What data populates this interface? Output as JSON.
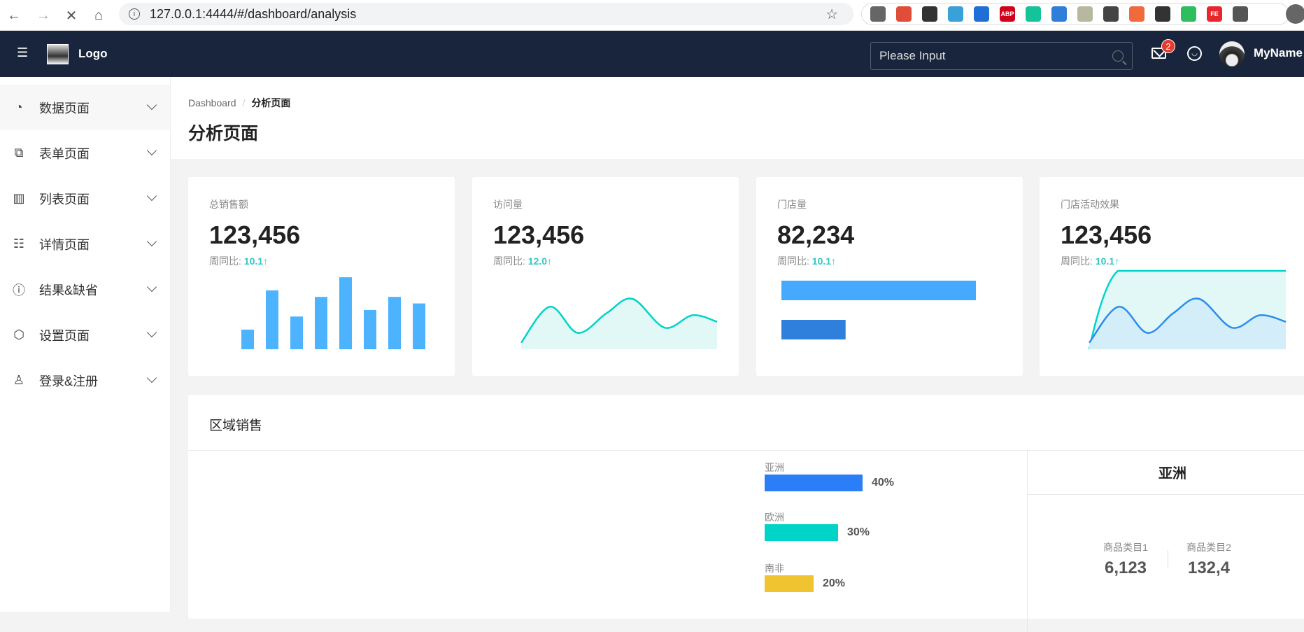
{
  "browser": {
    "url": "127.0.0.1:4444/#/dashboard/analysis",
    "nav_icons": [
      "back-arrow-icon",
      "forward-arrow-icon",
      "stop-loading-icon",
      "home-icon"
    ],
    "extensions": [
      {
        "name": "pocket-icon",
        "color": "#666666",
        "text": ""
      },
      {
        "name": "react-devtools-icon",
        "color": "#e04e39",
        "text": ""
      },
      {
        "name": "download-icon",
        "color": "#333333",
        "text": ""
      },
      {
        "name": "colorful-bowl-icon",
        "color": "#3aa0d8",
        "text": ""
      },
      {
        "name": "vue-devtools-icon",
        "color": "#1f6fd6",
        "text": ""
      },
      {
        "name": "adblock-plus-icon",
        "color": "#d0021b",
        "text": "ABP"
      },
      {
        "name": "grammarly-icon",
        "color": "#15c39a",
        "text": ""
      },
      {
        "name": "upload-arrow-icon",
        "color": "#2f7ed8",
        "text": ""
      },
      {
        "name": "image-download-icon",
        "color": "#b8b8a0",
        "text": ""
      },
      {
        "name": "edit-pen-icon",
        "color": "#444444",
        "text": ""
      },
      {
        "name": "sitemap-icon",
        "color": "#f06a3b",
        "text": ""
      },
      {
        "name": "dark-reader-icon",
        "color": "#333333",
        "text": ""
      },
      {
        "name": "evernote-icon",
        "color": "#2dbe60",
        "text": ""
      },
      {
        "name": "fe-helper-icon",
        "color": "#e8262b",
        "text": "FE"
      },
      {
        "name": "puzzle-extensions-icon",
        "color": "#555555",
        "text": ""
      }
    ]
  },
  "header": {
    "logo_text": "Logo",
    "search_placeholder": "Please Input",
    "mail_badge": "2",
    "username": "MyName"
  },
  "sidebar": {
    "items": [
      {
        "label": "数据页面",
        "icon": "pie-chart-icon",
        "glyph": "◔",
        "active": true
      },
      {
        "label": "表单页面",
        "icon": "form-icon",
        "glyph": "⧉"
      },
      {
        "label": "列表页面",
        "icon": "bar-chart-icon",
        "glyph": "▥"
      },
      {
        "label": "详情页面",
        "icon": "calendar-detail-icon",
        "glyph": "☷"
      },
      {
        "label": "结果&缺省",
        "icon": "exclamation-circle-icon",
        "glyph": "ⓘ"
      },
      {
        "label": "设置页面",
        "icon": "settings-hexagon-icon",
        "glyph": "⬡"
      },
      {
        "label": "登录&注册",
        "icon": "user-icon",
        "glyph": "♙"
      }
    ]
  },
  "page": {
    "breadcrumb": [
      "Dashboard",
      "分析页面"
    ],
    "title": "分析页面"
  },
  "cards": [
    {
      "title": "总销售额",
      "value": "123,456",
      "compare_label": "周同比:",
      "compare_value": "10.1↑"
    },
    {
      "title": "访问量",
      "value": "123,456",
      "compare_label": "周同比:",
      "compare_value": "12.0↑"
    },
    {
      "title": "门店量",
      "value": "82,234",
      "compare_label": "周同比:",
      "compare_value": "10.1↑"
    },
    {
      "title": "门店活动效果",
      "value": "123,456",
      "compare_label": "周同比:",
      "compare_value": "10.1↑"
    }
  ],
  "chart_data": [
    {
      "type": "bar",
      "values": [
        3,
        9,
        5,
        8,
        11,
        6,
        8,
        7
      ],
      "color": "#4db3ff"
    },
    {
      "type": "area",
      "values": [
        1,
        6.5,
        2.5,
        5.5,
        7.7,
        3.3,
        5.2,
        4.2
      ],
      "color": "#00d4c8",
      "fill": "#e2f8f6"
    },
    {
      "type": "bar",
      "orientation": "horizontal",
      "values": [
        100,
        33
      ],
      "colors": [
        "#45a9fd",
        "#2f80dd"
      ]
    },
    {
      "type": "area",
      "series": [
        {
          "values": [
            0,
            9.4,
            9.4,
            9.4,
            9.4,
            9.4,
            9.4,
            9.4
          ],
          "color": "#00d4c8"
        },
        {
          "values": [
            1,
            6.5,
            2.5,
            5.5,
            7.7,
            3.3,
            5.2,
            4.2
          ],
          "color": "#2d8cf0"
        }
      ]
    }
  ],
  "region": {
    "title": "区域销售",
    "bars": [
      {
        "label": "亚洲",
        "percent": 40,
        "text": "40%",
        "color": "#2c7ef8"
      },
      {
        "label": "欧洲",
        "percent": 30,
        "text": "30%",
        "color": "#00d4c8"
      },
      {
        "label": "南非",
        "percent": 20,
        "text": "20%",
        "color": "#f0c330"
      }
    ],
    "detail": {
      "title": "亚洲",
      "categories": [
        {
          "label": "商品类目1",
          "value": "6,123"
        },
        {
          "label": "商品类目2",
          "value": "132,4"
        }
      ]
    }
  }
}
